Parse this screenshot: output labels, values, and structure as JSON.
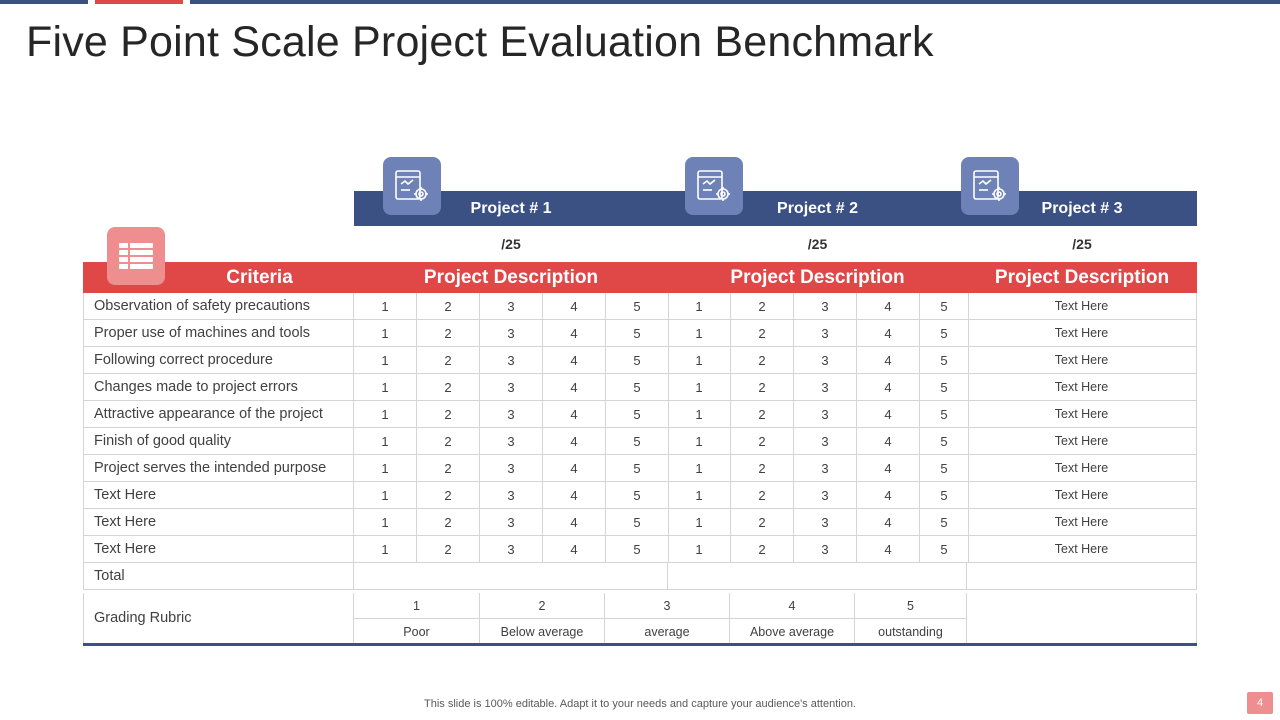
{
  "slide": {
    "title": "Five Point Scale Project Evaluation Benchmark",
    "footer": "This slide is 100% editable. Adapt it to your needs and capture your audience's attention.",
    "page_number": "4"
  },
  "projects": [
    {
      "name": "Project # 1",
      "score": "/25",
      "icon": "website-settings-icon"
    },
    {
      "name": "Project # 2",
      "score": "/25",
      "icon": "website-settings-icon"
    },
    {
      "name": "Project # 3",
      "score": "/25",
      "icon": "website-settings-icon"
    }
  ],
  "table": {
    "criteria_header": "Criteria",
    "criteria_icon": "list-icon",
    "description_headers": [
      "Project Description",
      "Project Description",
      "Project Description"
    ],
    "scale": [
      "1",
      "2",
      "3",
      "4",
      "5"
    ],
    "rows": [
      {
        "criteria": "Observation of safety precautions",
        "text": "Text Here"
      },
      {
        "criteria": "Proper use of machines and tools",
        "text": "Text Here"
      },
      {
        "criteria": "Following correct procedure",
        "text": "Text Here"
      },
      {
        "criteria": "Changes made to project errors",
        "text": "Text Here"
      },
      {
        "criteria": "Attractive appearance of the project",
        "text": "Text Here"
      },
      {
        "criteria": "Finish of good quality",
        "text": "Text Here"
      },
      {
        "criteria": "Project serves the intended purpose",
        "text": "Text Here"
      },
      {
        "criteria": "Text Here",
        "text": "Text Here"
      },
      {
        "criteria": "Text Here",
        "text": "Text Here"
      },
      {
        "criteria": "Text Here",
        "text": "Text Here"
      }
    ],
    "total_label": "Total",
    "rubric_label": "Grading Rubric",
    "rubric": [
      {
        "score": "1",
        "label": "Poor"
      },
      {
        "score": "2",
        "label": "Below average"
      },
      {
        "score": "3",
        "label": "average"
      },
      {
        "score": "4",
        "label": "Above average"
      },
      {
        "score": "5",
        "label": "outstanding"
      }
    ]
  },
  "colors": {
    "navy": "#3b5184",
    "red": "#e04848",
    "icon_blue": "#6f82b8",
    "icon_pink": "#ef8e8e"
  }
}
